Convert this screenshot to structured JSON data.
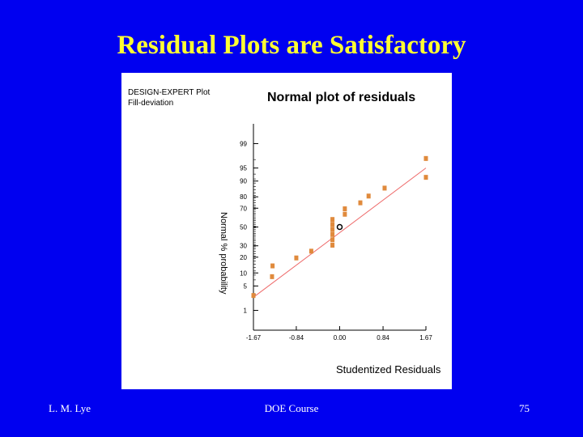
{
  "slide": {
    "title": "Residual Plots are Satisfactory",
    "footer_left": "L. M. Lye",
    "footer_center": "DOE Course",
    "footer_right": "75",
    "background_color": "#0000f0",
    "title_color": "#ffff33"
  },
  "chart_data": {
    "type": "scatter",
    "software_label": "DESIGN-EXPERT Plot",
    "response_label": "Fill-deviation",
    "title": "Normal plot of residuals",
    "xlabel": "Studentized Residuals",
    "ylabel": "Normal % probability",
    "x_ticks": [
      "-1.67",
      "-0.84",
      "0.00",
      "0.84",
      "1.67"
    ],
    "y_ticks": [
      "1",
      "5",
      "10",
      "20",
      "30",
      "50",
      "70",
      "80",
      "90",
      "95",
      "99"
    ],
    "xlim": [
      -1.67,
      1.67
    ],
    "ylim_percent": [
      0.2,
      99.8
    ],
    "y_scale": "normal-probability",
    "point_color": "#e08a3c",
    "line_color": "#ee6a6a",
    "fit_line": {
      "x": [
        -1.67,
        1.67
      ],
      "y": [
        2.5,
        95
      ]
    },
    "series": [
      {
        "x": [
          -1.67,
          -1.31,
          -1.3,
          -0.84,
          -0.55,
          -0.14,
          -0.14,
          -0.14,
          -0.14,
          -0.14,
          -0.14,
          0.1,
          0.1,
          0.4,
          0.56,
          0.87,
          1.67,
          1.67
        ],
        "y": [
          2.8,
          8.3,
          13.9,
          19.4,
          25.0,
          30.6,
          36.1,
          41.7,
          47.2,
          52.8,
          58.3,
          63.9,
          69.4,
          75.0,
          80.6,
          86.1,
          91.7,
          97.2
        ]
      }
    ],
    "highlighted_point": {
      "x": 0.0,
      "y": 50
    },
    "grid": false,
    "legend": "none"
  }
}
